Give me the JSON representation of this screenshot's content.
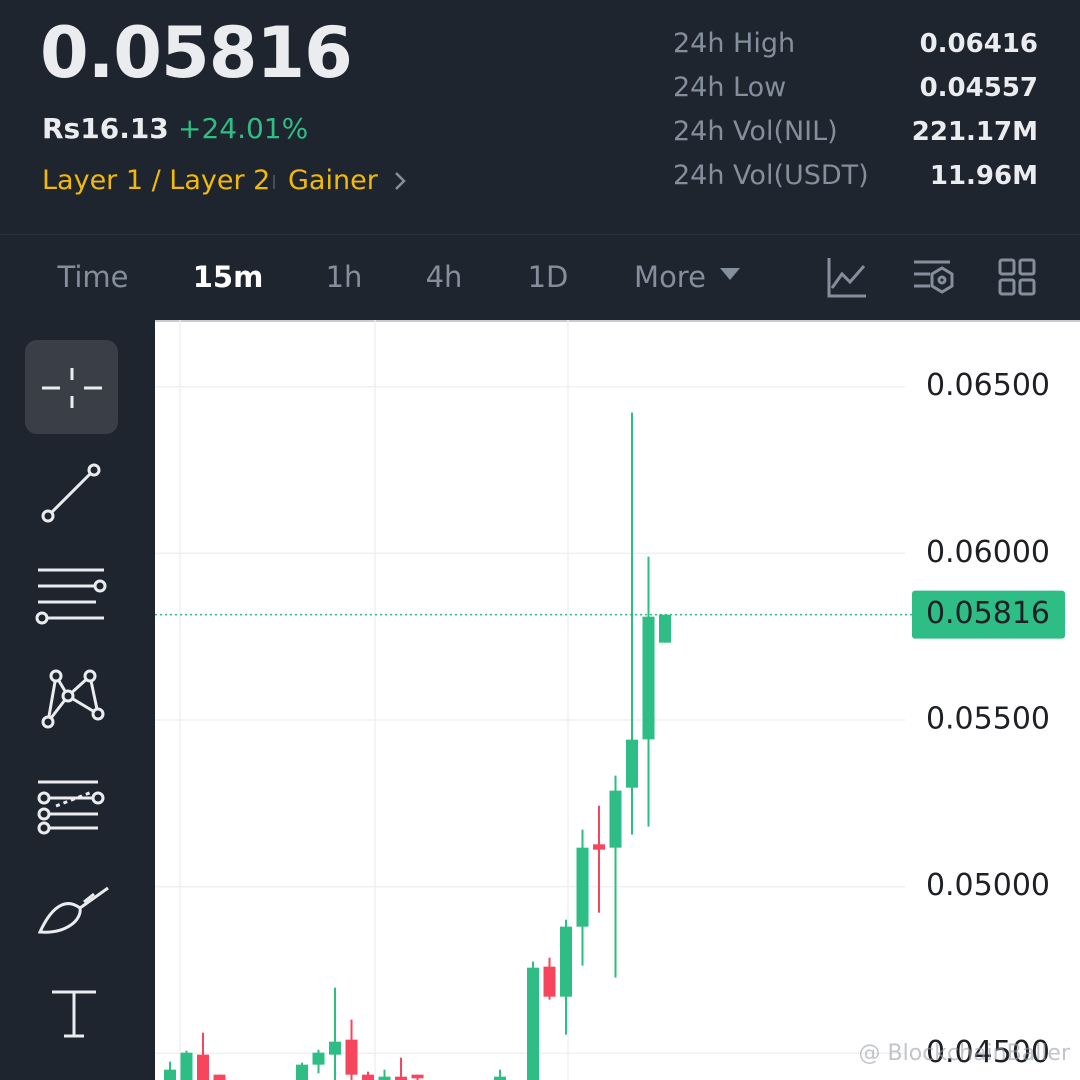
{
  "header": {
    "price": "0.05816",
    "fiat_price": "Rs16.13",
    "change": "+24.01%",
    "tags": [
      "Layer 1 / Layer 2",
      "Gainer"
    ],
    "stats": [
      {
        "label": "24h High",
        "value": "0.06416"
      },
      {
        "label": "24h Low",
        "value": "0.04557"
      },
      {
        "label": "24h Vol(NIL)",
        "value": "221.17M"
      },
      {
        "label": "24h Vol(USDT)",
        "value": "11.96M"
      }
    ]
  },
  "tabs": {
    "items": [
      "Time",
      "15m",
      "1h",
      "4h",
      "1D",
      "More"
    ],
    "active": 1
  },
  "watermark": "@ BlockchainBaller",
  "chart_data": {
    "type": "candlestick",
    "up_color": "#2ebd85",
    "down_color": "#f6465d",
    "open": [
      0.0442,
      0.0442,
      0.04496,
      0.04436,
      null,
      null,
      null,
      null,
      0.0442,
      0.04466,
      0.04496,
      0.04541,
      0.04436,
      0.0442,
      0.0443,
      0.04436,
      null,
      null,
      null,
      null,
      0.0441,
      null,
      0.044,
      0.0476,
      0.0467,
      0.0488,
      0.05127,
      0.05117,
      0.05297,
      0.05442,
      0.05732
    ],
    "high": [
      0.04475,
      0.04508,
      0.04562,
      0.04436,
      null,
      null,
      null,
      null,
      0.04472,
      0.04511,
      0.04697,
      0.04601,
      0.04445,
      0.04451,
      0.04487,
      0.04436,
      null,
      null,
      null,
      null,
      0.04451,
      null,
      0.04775,
      0.04787,
      0.04901,
      0.05171,
      0.05243,
      0.05333,
      0.06422,
      0.0599,
      0.05816
    ],
    "low": [
      0.0441,
      0.044,
      0.044,
      0.044,
      null,
      null,
      null,
      null,
      0.0441,
      0.0444,
      0.0442,
      0.0441,
      0.044,
      0.044,
      0.044,
      0.044,
      null,
      null,
      null,
      null,
      0.044,
      null,
      0.0438,
      0.04661,
      0.04556,
      0.04763,
      0.04922,
      0.04727,
      0.05156,
      0.0518,
      0.05732
    ],
    "close": [
      0.04451,
      0.04502,
      0.0442,
      0.0442,
      null,
      null,
      null,
      null,
      0.04466,
      0.04502,
      0.04535,
      0.04436,
      0.0442,
      0.0443,
      0.0442,
      0.04425,
      null,
      null,
      null,
      null,
      0.0443,
      null,
      0.04757,
      0.0467,
      0.0488,
      0.05117,
      0.05111,
      0.05288,
      0.05441,
      0.0581,
      0.05816
    ],
    "last_price": 0.05816,
    "ylim": [
      0.0442,
      0.067
    ],
    "yticks": [
      {
        "value": 0.065,
        "label": "0.06500"
      },
      {
        "value": 0.06,
        "label": "0.06000"
      },
      {
        "value": 0.055,
        "label": "0.05500"
      },
      {
        "value": 0.05,
        "label": "0.05000"
      },
      {
        "value": 0.045,
        "label": "0.04500"
      }
    ],
    "grid": true
  }
}
